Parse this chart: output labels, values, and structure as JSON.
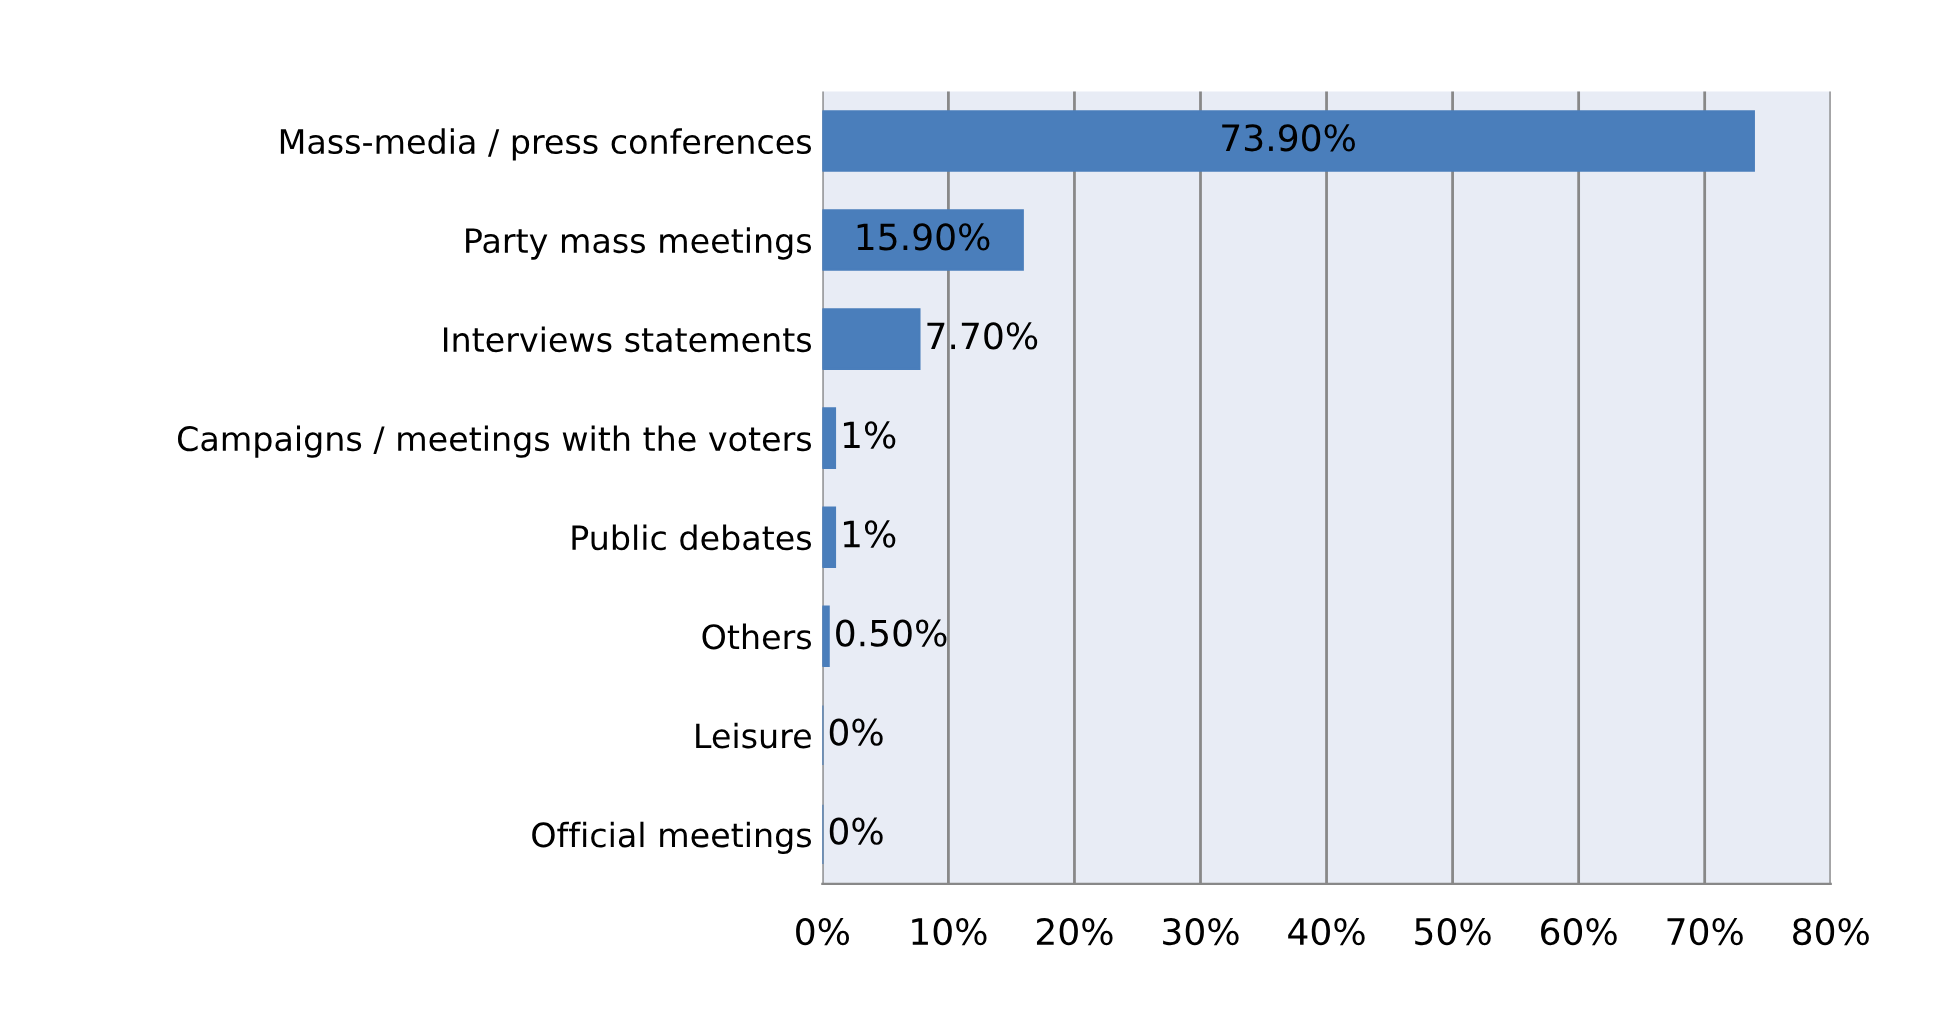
{
  "chart_data": {
    "type": "bar",
    "orientation": "horizontal",
    "categories": [
      "Mass-media / press conferences",
      "Party mass meetings",
      "Interviews statements",
      "Campaigns / meetings with the voters",
      "Public debates",
      "Others",
      "Leisure",
      "Official meetings"
    ],
    "values": [
      73.9,
      15.9,
      7.7,
      1,
      1,
      0.5,
      0,
      0
    ],
    "value_labels": [
      "73.90%",
      "15.90%",
      "7.70%",
      "1%",
      "1%",
      "0.50%",
      "0%",
      "0%"
    ],
    "color": "#4a7ebb",
    "xlim": [
      0,
      80
    ],
    "xticks": [
      {
        "value": 0,
        "label": "0%"
      },
      {
        "value": 10,
        "label": "10%"
      },
      {
        "value": 20,
        "label": "20%"
      },
      {
        "value": 30,
        "label": "30%"
      },
      {
        "value": 40,
        "label": "40%"
      },
      {
        "value": 50,
        "label": "50%"
      },
      {
        "value": 60,
        "label": "60%"
      },
      {
        "value": 70,
        "label": "70%"
      },
      {
        "value": 80,
        "label": "80%"
      }
    ],
    "grid": "x"
  }
}
